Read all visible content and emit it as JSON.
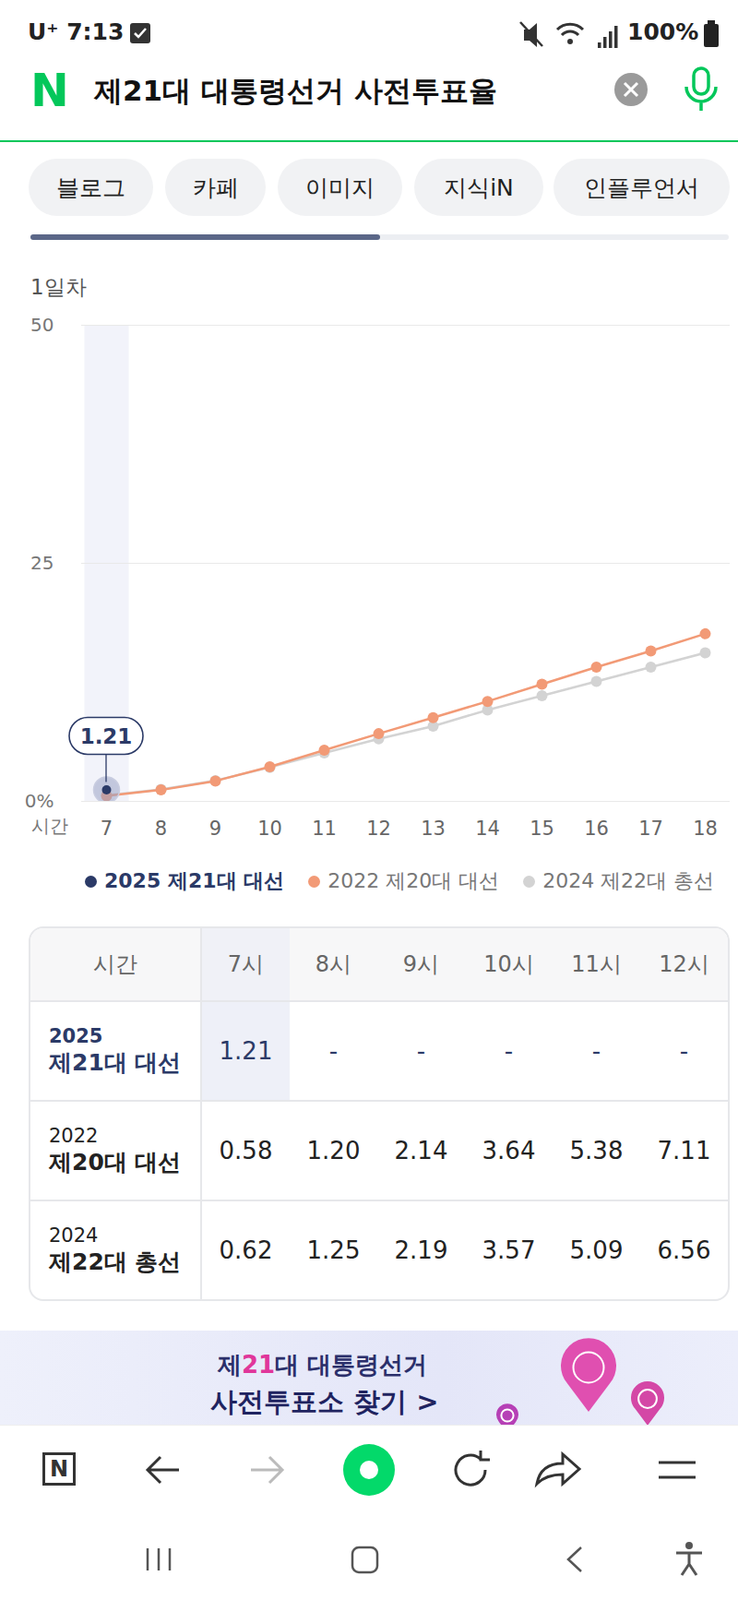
{
  "status_bar": {
    "carrier": "U⁺",
    "time": "7:13",
    "battery": "100%"
  },
  "search": {
    "logo": "N",
    "query": "제21대 대통령선거 사전투표율"
  },
  "tabs": [
    "블로그",
    "카페",
    "이미지",
    "지식iN",
    "인플루언서"
  ],
  "chart_data": {
    "type": "line",
    "title": "1일차",
    "x_label": "시간",
    "categories": [
      "7",
      "8",
      "9",
      "10",
      "11",
      "12",
      "13",
      "14",
      "15",
      "16",
      "17",
      "18"
    ],
    "ylim": [
      0,
      50
    ],
    "yticks": [
      {
        "value": 0,
        "label": "0%"
      },
      25,
      50
    ],
    "grid": true,
    "legend": "bottom",
    "series": [
      {
        "name": "2025 제21대 대선",
        "color": "#2b3a67",
        "marker": "circle",
        "data_labels": true,
        "values": [
          1.21,
          null,
          null,
          null,
          null,
          null,
          null,
          null,
          null,
          null,
          null,
          null
        ]
      },
      {
        "name": "2022 제20대 대선",
        "color": "#f29a76",
        "marker": "circle",
        "values": [
          0.58,
          1.2,
          2.14,
          3.64,
          5.38,
          7.11,
          8.8,
          10.5,
          12.3,
          14.1,
          15.8,
          17.6
        ]
      },
      {
        "name": "2024 제22대 총선",
        "color": "#d3d3d3",
        "marker": "circle",
        "values": [
          0.62,
          1.25,
          2.19,
          3.57,
          5.09,
          6.56,
          7.9,
          9.6,
          11.1,
          12.6,
          14.1,
          15.6
        ]
      }
    ]
  },
  "table": {
    "header": [
      "시간",
      "7시",
      "8시",
      "9시",
      "10시",
      "11시",
      "12시"
    ],
    "rows": [
      {
        "year": "2025",
        "name": "제21대 대선",
        "cells": [
          "1.21",
          "-",
          "-",
          "-",
          "-",
          "-"
        ]
      },
      {
        "year": "2022",
        "name": "제20대 대선",
        "cells": [
          "0.58",
          "1.20",
          "2.14",
          "3.64",
          "5.38",
          "7.11"
        ]
      },
      {
        "year": "2024",
        "name": "제22대 총선",
        "cells": [
          "0.62",
          "1.25",
          "2.19",
          "3.57",
          "5.09",
          "6.56"
        ]
      }
    ]
  },
  "banner": {
    "title": "제21대 대통령선거",
    "link": "사전투표소 찾기 >"
  },
  "browser_nav": {
    "home_icon": "N"
  }
}
